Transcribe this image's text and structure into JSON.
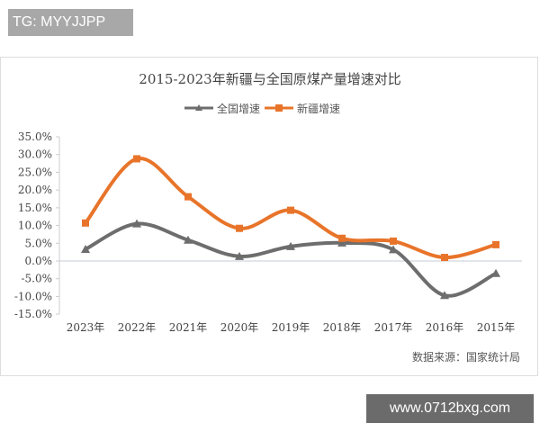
{
  "header_tag": "TG: MYYJJPP",
  "footer_site": "www.0712bxg.com",
  "chart_data": {
    "type": "line",
    "title": "2015-2023年新疆与全国原煤产量增速对比",
    "source": "数据来源：国家统计局",
    "categories": [
      "2023年",
      "2022年",
      "2021年",
      "2020年",
      "2019年",
      "2018年",
      "2017年",
      "2016年",
      "2015年"
    ],
    "yticks": [
      "35.0%",
      "30.0%",
      "25.0%",
      "20.0%",
      "15.0%",
      "10.0%",
      "5.0%",
      "0.0%",
      "-5.0%",
      "-10.0%",
      "-15.0%"
    ],
    "ylim": [
      -15,
      35
    ],
    "legend": "top",
    "series": [
      {
        "name": "全国增速",
        "color": "#6d6d6d",
        "marker": "triangle",
        "values": [
          3.3,
          10.5,
          5.9,
          1.3,
          4.1,
          5.1,
          3.2,
          -9.7,
          -3.5
        ]
      },
      {
        "name": "新疆增速",
        "color": "#e8742a",
        "marker": "square",
        "values": [
          10.7,
          28.8,
          18.1,
          9.2,
          14.3,
          6.4,
          5.6,
          1.0,
          4.6
        ]
      }
    ]
  }
}
